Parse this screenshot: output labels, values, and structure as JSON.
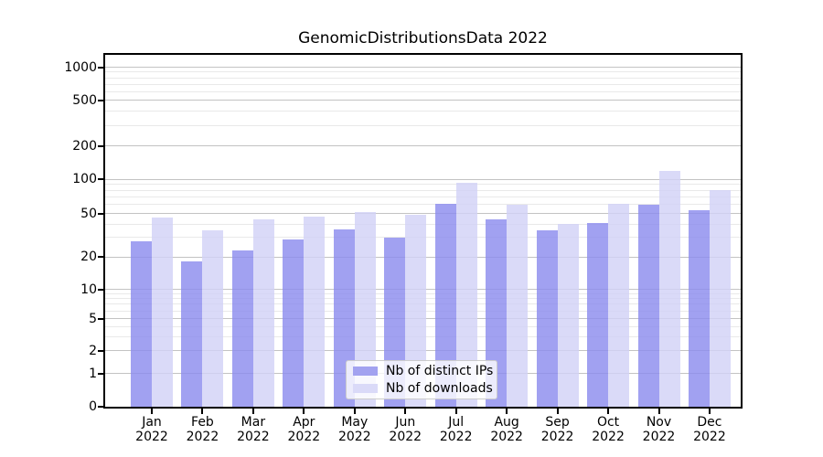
{
  "title": "GenomicDistributionsData 2022",
  "chart_data": {
    "type": "bar",
    "title": "GenomicDistributionsData 2022",
    "x_months": [
      "Jan",
      "Feb",
      "Mar",
      "Apr",
      "May",
      "Jun",
      "Jul",
      "Aug",
      "Sep",
      "Oct",
      "Nov",
      "Dec"
    ],
    "x_year": "2022",
    "categories": [
      "Jan 2022",
      "Feb 2022",
      "Mar 2022",
      "Apr 2022",
      "May 2022",
      "Jun 2022",
      "Jul 2022",
      "Aug 2022",
      "Sep 2022",
      "Oct 2022",
      "Nov 2022",
      "Dec 2022"
    ],
    "series": [
      {
        "name": "Nb of distinct IPs",
        "color_solid": "#a2a2f0",
        "color_fill": "rgba(140,140,238,0.82)",
        "values": [
          28,
          18,
          23,
          29,
          36,
          30,
          61,
          44,
          35,
          41,
          60,
          53
        ]
      },
      {
        "name": "Nb of downloads",
        "color_solid": "#dadaf8",
        "color_fill": "rgba(210,210,247,0.82)",
        "values": [
          46,
          35,
          44,
          47,
          51,
          49,
          93,
          60,
          40,
          61,
          118,
          80
        ]
      }
    ],
    "y_ticks": [
      1000,
      500,
      200,
      100,
      50,
      20,
      10,
      5,
      2,
      1,
      0
    ],
    "yscale": "symlog",
    "ylim": [
      0,
      1400
    ],
    "grid": "both",
    "legend_position": "lower center",
    "xlabel": "",
    "ylabel": ""
  }
}
